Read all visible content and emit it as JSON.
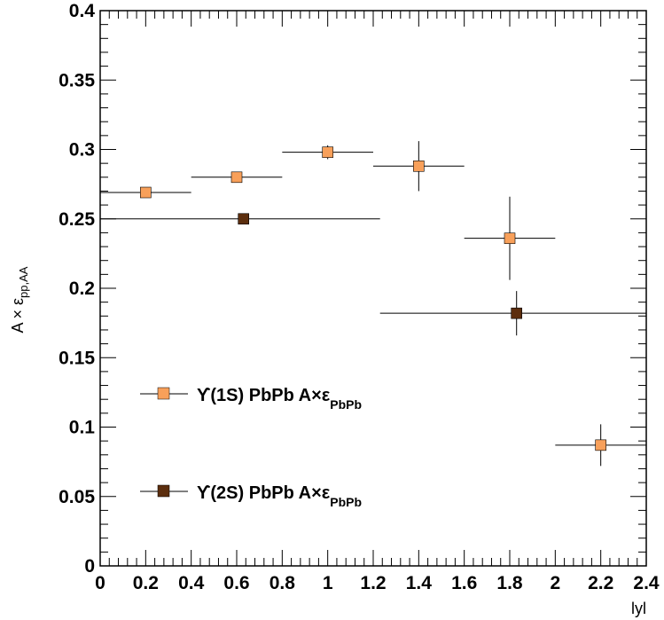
{
  "chart_data": {
    "type": "scatter",
    "title": "",
    "xlabel": "lyl",
    "ylabel_main": "A × ε",
    "ylabel_sub": "pp,AA",
    "xlim": [
      0,
      2.4
    ],
    "ylim": [
      0,
      0.4
    ],
    "x_ticks": [
      0,
      0.2,
      0.4,
      0.6,
      0.8,
      1,
      1.2,
      1.4,
      1.6,
      1.8,
      2,
      2.2,
      2.4
    ],
    "x_tick_labels": [
      "0",
      "0.2",
      "0.4",
      "0.6",
      "0.8",
      "1",
      "1.2",
      "1.4",
      "1.6",
      "1.8",
      "2",
      "2.2",
      "2.4"
    ],
    "y_ticks": [
      0,
      0.05,
      0.1,
      0.15,
      0.2,
      0.25,
      0.3,
      0.35,
      0.4
    ],
    "y_tick_labels": [
      "0",
      "0.05",
      "0.1",
      "0.15",
      "0.2",
      "0.25",
      "0.3",
      "0.35",
      "0.4"
    ],
    "grid": false,
    "legend_position": "left",
    "series": [
      {
        "name": "ϒ(1S) PbPb A×ε",
        "name_sub": "PbPb",
        "color": "#f8a05a",
        "points": [
          {
            "x": 0.2,
            "xlo": 0.0,
            "xhi": 0.4,
            "y": 0.269,
            "ylo": 0.269,
            "yhi": 0.269
          },
          {
            "x": 0.6,
            "xlo": 0.4,
            "xhi": 0.8,
            "y": 0.28,
            "ylo": 0.28,
            "yhi": 0.28
          },
          {
            "x": 1.0,
            "xlo": 0.8,
            "xhi": 1.2,
            "y": 0.298,
            "ylo": 0.293,
            "yhi": 0.303
          },
          {
            "x": 1.4,
            "xlo": 1.2,
            "xhi": 1.6,
            "y": 0.288,
            "ylo": 0.27,
            "yhi": 0.306
          },
          {
            "x": 1.8,
            "xlo": 1.6,
            "xhi": 2.0,
            "y": 0.236,
            "ylo": 0.206,
            "yhi": 0.266
          },
          {
            "x": 2.2,
            "xlo": 2.0,
            "xhi": 2.4,
            "y": 0.087,
            "ylo": 0.072,
            "yhi": 0.102
          }
        ]
      },
      {
        "name": "ϒ(2S) PbPb A×ε",
        "name_sub": "PbPb",
        "color": "#5c2e0e",
        "points": [
          {
            "x": 0.63,
            "xlo": 0.0,
            "xhi": 1.23,
            "y": 0.25,
            "ylo": 0.25,
            "yhi": 0.25
          },
          {
            "x": 1.83,
            "xlo": 1.23,
            "xhi": 2.4,
            "y": 0.182,
            "ylo": 0.166,
            "yhi": 0.198
          }
        ]
      }
    ]
  }
}
